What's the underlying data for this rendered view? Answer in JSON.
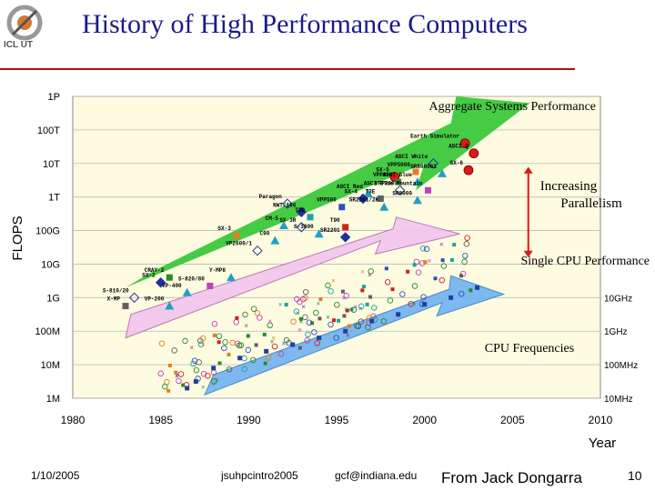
{
  "slide": {
    "title": "History of High Performance Computers",
    "logo_text": "ICL UT",
    "footer_date": "1/10/2005",
    "footer_file": "jsuhpcintro2005",
    "footer_email": "gcf@indiana.edu",
    "footer_credit": "From Jack Dongarra",
    "page_number": "10"
  },
  "colors": {
    "title": "#1a1a8c",
    "rule": "#b01010",
    "plot_bg": "#fdfbe0",
    "green_arrow": "#3cc83c",
    "pink_arrow": "#f3c4f0",
    "blue_arrow": "#6fb2f0",
    "red": "#e01818"
  },
  "chart_data": {
    "type": "scatter",
    "title": "History of High Performance Computers",
    "xlabel": "Year",
    "ylabel": "FLOPS",
    "xlim": [
      1980,
      2010
    ],
    "x_ticks": [
      1980,
      1985,
      1990,
      1995,
      2000,
      2005,
      2010
    ],
    "y_ticks_left": [
      "1P",
      "100T",
      "10T",
      "1T",
      "100G",
      "10G",
      "1G",
      "100M",
      "10M",
      "1M"
    ],
    "y_ticks_left_log10": [
      15,
      14,
      13,
      12,
      11,
      10,
      9,
      8,
      7,
      6
    ],
    "y_ticks_right": [
      "10GHz",
      "1GHz",
      "100MHz",
      "10MHz"
    ],
    "y_ticks_right_log10": [
      9,
      8,
      7,
      6
    ],
    "annotations": {
      "aggregate": "Aggregate Systems Performance",
      "parallelism_line1": "Increasing",
      "parallelism_line2": "Parallelism",
      "single_cpu": "Single CPU Performance",
      "cpu_freq": "CPU Frequencies"
    },
    "systems": [
      {
        "name": "Earth Simulator",
        "year": 2002.3,
        "log_flops": 13.6,
        "label": "Earth Simulator"
      },
      {
        "name": "ASCI Q",
        "year": 2002.8,
        "log_flops": 13.3,
        "label": "ASCI Q"
      },
      {
        "name": "SX-6",
        "year": 2002.5,
        "log_flops": 12.8,
        "label": "SX-6"
      },
      {
        "name": "ASCI White",
        "year": 2000.5,
        "log_flops": 13.0,
        "label": "ASCI White"
      },
      {
        "name": "VPP5000",
        "year": 1999.5,
        "log_flops": 12.75,
        "label": "VPP5000"
      },
      {
        "name": "SR8000G1",
        "year": 2001.0,
        "log_flops": 12.7,
        "label": "SR8000G1"
      },
      {
        "name": "SX-5",
        "year": 1998.3,
        "log_flops": 12.6,
        "label": "SX-5"
      },
      {
        "name": "VPP800",
        "year": 1998.5,
        "log_flops": 12.45,
        "label": "VPP800"
      },
      {
        "name": "ASCI Blue",
        "year": 1999.6,
        "log_flops": 12.45,
        "label": "ASCI Blue"
      },
      {
        "name": "VPP700",
        "year": 1998.6,
        "log_flops": 12.2,
        "label": "VPP700"
      },
      {
        "name": "ASCI Blue Mountain",
        "year": 2000.2,
        "log_flops": 12.2,
        "label": "ASCI Blue Mountain"
      },
      {
        "name": "ASCI Red",
        "year": 1996.8,
        "log_flops": 12.1,
        "label": "ASCI Red"
      },
      {
        "name": "SX-4",
        "year": 1996.5,
        "log_flops": 11.95,
        "label": "SX-4"
      },
      {
        "name": "T3E",
        "year": 1997.5,
        "log_flops": 11.95,
        "label": "T3E"
      },
      {
        "name": "SR8000",
        "year": 1999.6,
        "log_flops": 11.9,
        "label": "SR8000"
      },
      {
        "name": "Paragon",
        "year": 1992.2,
        "log_flops": 11.8,
        "label": "Paragon"
      },
      {
        "name": "VPP500",
        "year": 1995.3,
        "log_flops": 11.7,
        "label": "VPP500"
      },
      {
        "name": "SR2201/2K",
        "year": 1997.7,
        "log_flops": 11.7,
        "label": "SR2201/2K"
      },
      {
        "name": "NWT/166",
        "year": 1993.0,
        "log_flops": 11.55,
        "label": "NWT/166"
      },
      {
        "name": "T3D",
        "year": 1993.5,
        "log_flops": 11.4,
        "label": "T3D"
      },
      {
        "name": "CM-5",
        "year": 1992.0,
        "log_flops": 11.15,
        "label": "CM-5"
      },
      {
        "name": "SX-3R",
        "year": 1993.0,
        "log_flops": 11.1,
        "label": "SX-3R"
      },
      {
        "name": "T90",
        "year": 1995.5,
        "log_flops": 11.1,
        "label": "T90"
      },
      {
        "name": "S-3800",
        "year": 1994.0,
        "log_flops": 10.9,
        "label": "S-3800"
      },
      {
        "name": "SR2201",
        "year": 1995.5,
        "log_flops": 10.8,
        "label": "SR2201"
      },
      {
        "name": "SX-3",
        "year": 1989.3,
        "log_flops": 10.85,
        "label": "SX-3"
      },
      {
        "name": "C90",
        "year": 1991.5,
        "log_flops": 10.7,
        "label": "C90"
      },
      {
        "name": "VP2600/1",
        "year": 1990.5,
        "log_flops": 10.4,
        "label": "VP2600/1"
      },
      {
        "name": "CRAY-2",
        "year": 1985.5,
        "log_flops": 9.6,
        "label": "CRAY-2"
      },
      {
        "name": "Y-MP8",
        "year": 1989.0,
        "log_flops": 9.6,
        "label": "Y-MP8"
      },
      {
        "name": "SX-2",
        "year": 1985.0,
        "log_flops": 9.45,
        "label": "SX-2"
      },
      {
        "name": "S-820/80",
        "year": 1987.8,
        "log_flops": 9.35,
        "label": "S-820/80"
      },
      {
        "name": "VP-400",
        "year": 1986.5,
        "log_flops": 9.15,
        "label": "VP-400"
      },
      {
        "name": "S-810/20",
        "year": 1983.5,
        "log_flops": 9.0,
        "label": "S-810/20"
      },
      {
        "name": "X-MP",
        "year": 1983.0,
        "log_flops": 8.75,
        "label": "X-MP"
      },
      {
        "name": "VP-200",
        "year": 1985.5,
        "log_flops": 8.75,
        "label": "VP-200"
      }
    ],
    "frequency_points_sample": [
      {
        "year": 1986.5,
        "log_value": 6.3
      },
      {
        "year": 1987.0,
        "log_value": 6.5
      },
      {
        "year": 1988.0,
        "log_value": 6.9
      },
      {
        "year": 1989.5,
        "log_value": 7.2
      },
      {
        "year": 1991.0,
        "log_value": 7.4
      },
      {
        "year": 1992.5,
        "log_value": 7.6
      },
      {
        "year": 1994.0,
        "log_value": 7.8
      },
      {
        "year": 1995.5,
        "log_value": 8.0
      },
      {
        "year": 1997.0,
        "log_value": 8.3
      },
      {
        "year": 1998.5,
        "log_value": 8.5
      },
      {
        "year": 2000.0,
        "log_value": 8.8
      },
      {
        "year": 2001.5,
        "log_value": 9.0
      },
      {
        "year": 2003.0,
        "log_value": 9.3
      }
    ]
  }
}
